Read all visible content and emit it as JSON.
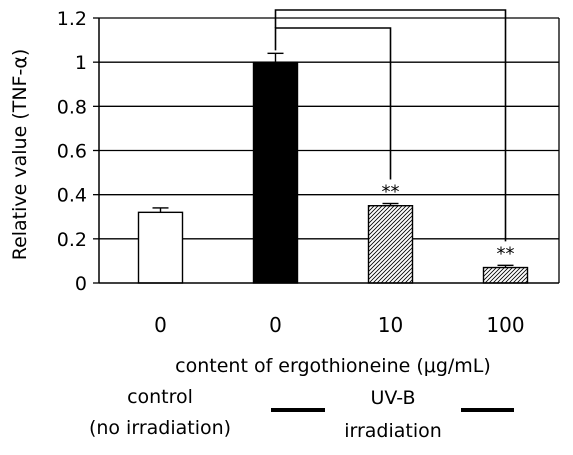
{
  "chart_data": {
    "type": "bar",
    "ylabel": "Relative value (TNF-α)",
    "xlabel": "content of ergothioneine (μg/mL)",
    "ylim": [
      0,
      1.2
    ],
    "yticks": [
      0,
      0.2,
      0.4,
      0.6,
      0.8,
      1,
      1.2
    ],
    "ytick_labels": [
      "0",
      "0.2",
      "0.4",
      "0.6",
      "0.8",
      "1",
      "1.2"
    ],
    "grid": true,
    "categories": [
      "0",
      "0",
      "10",
      "100"
    ],
    "values": [
      0.32,
      1.0,
      0.35,
      0.07
    ],
    "errors": [
      0.02,
      0.04,
      0.01,
      0.01
    ],
    "fills": [
      "white",
      "black",
      "hatch",
      "hatch"
    ],
    "significance": [
      "",
      "",
      "**",
      "**"
    ],
    "group_labels": {
      "control_line1": "control",
      "control_line2": "(no irradiation)",
      "uvb_line1": "UV-B",
      "uvb_line2": "irradiation"
    }
  }
}
